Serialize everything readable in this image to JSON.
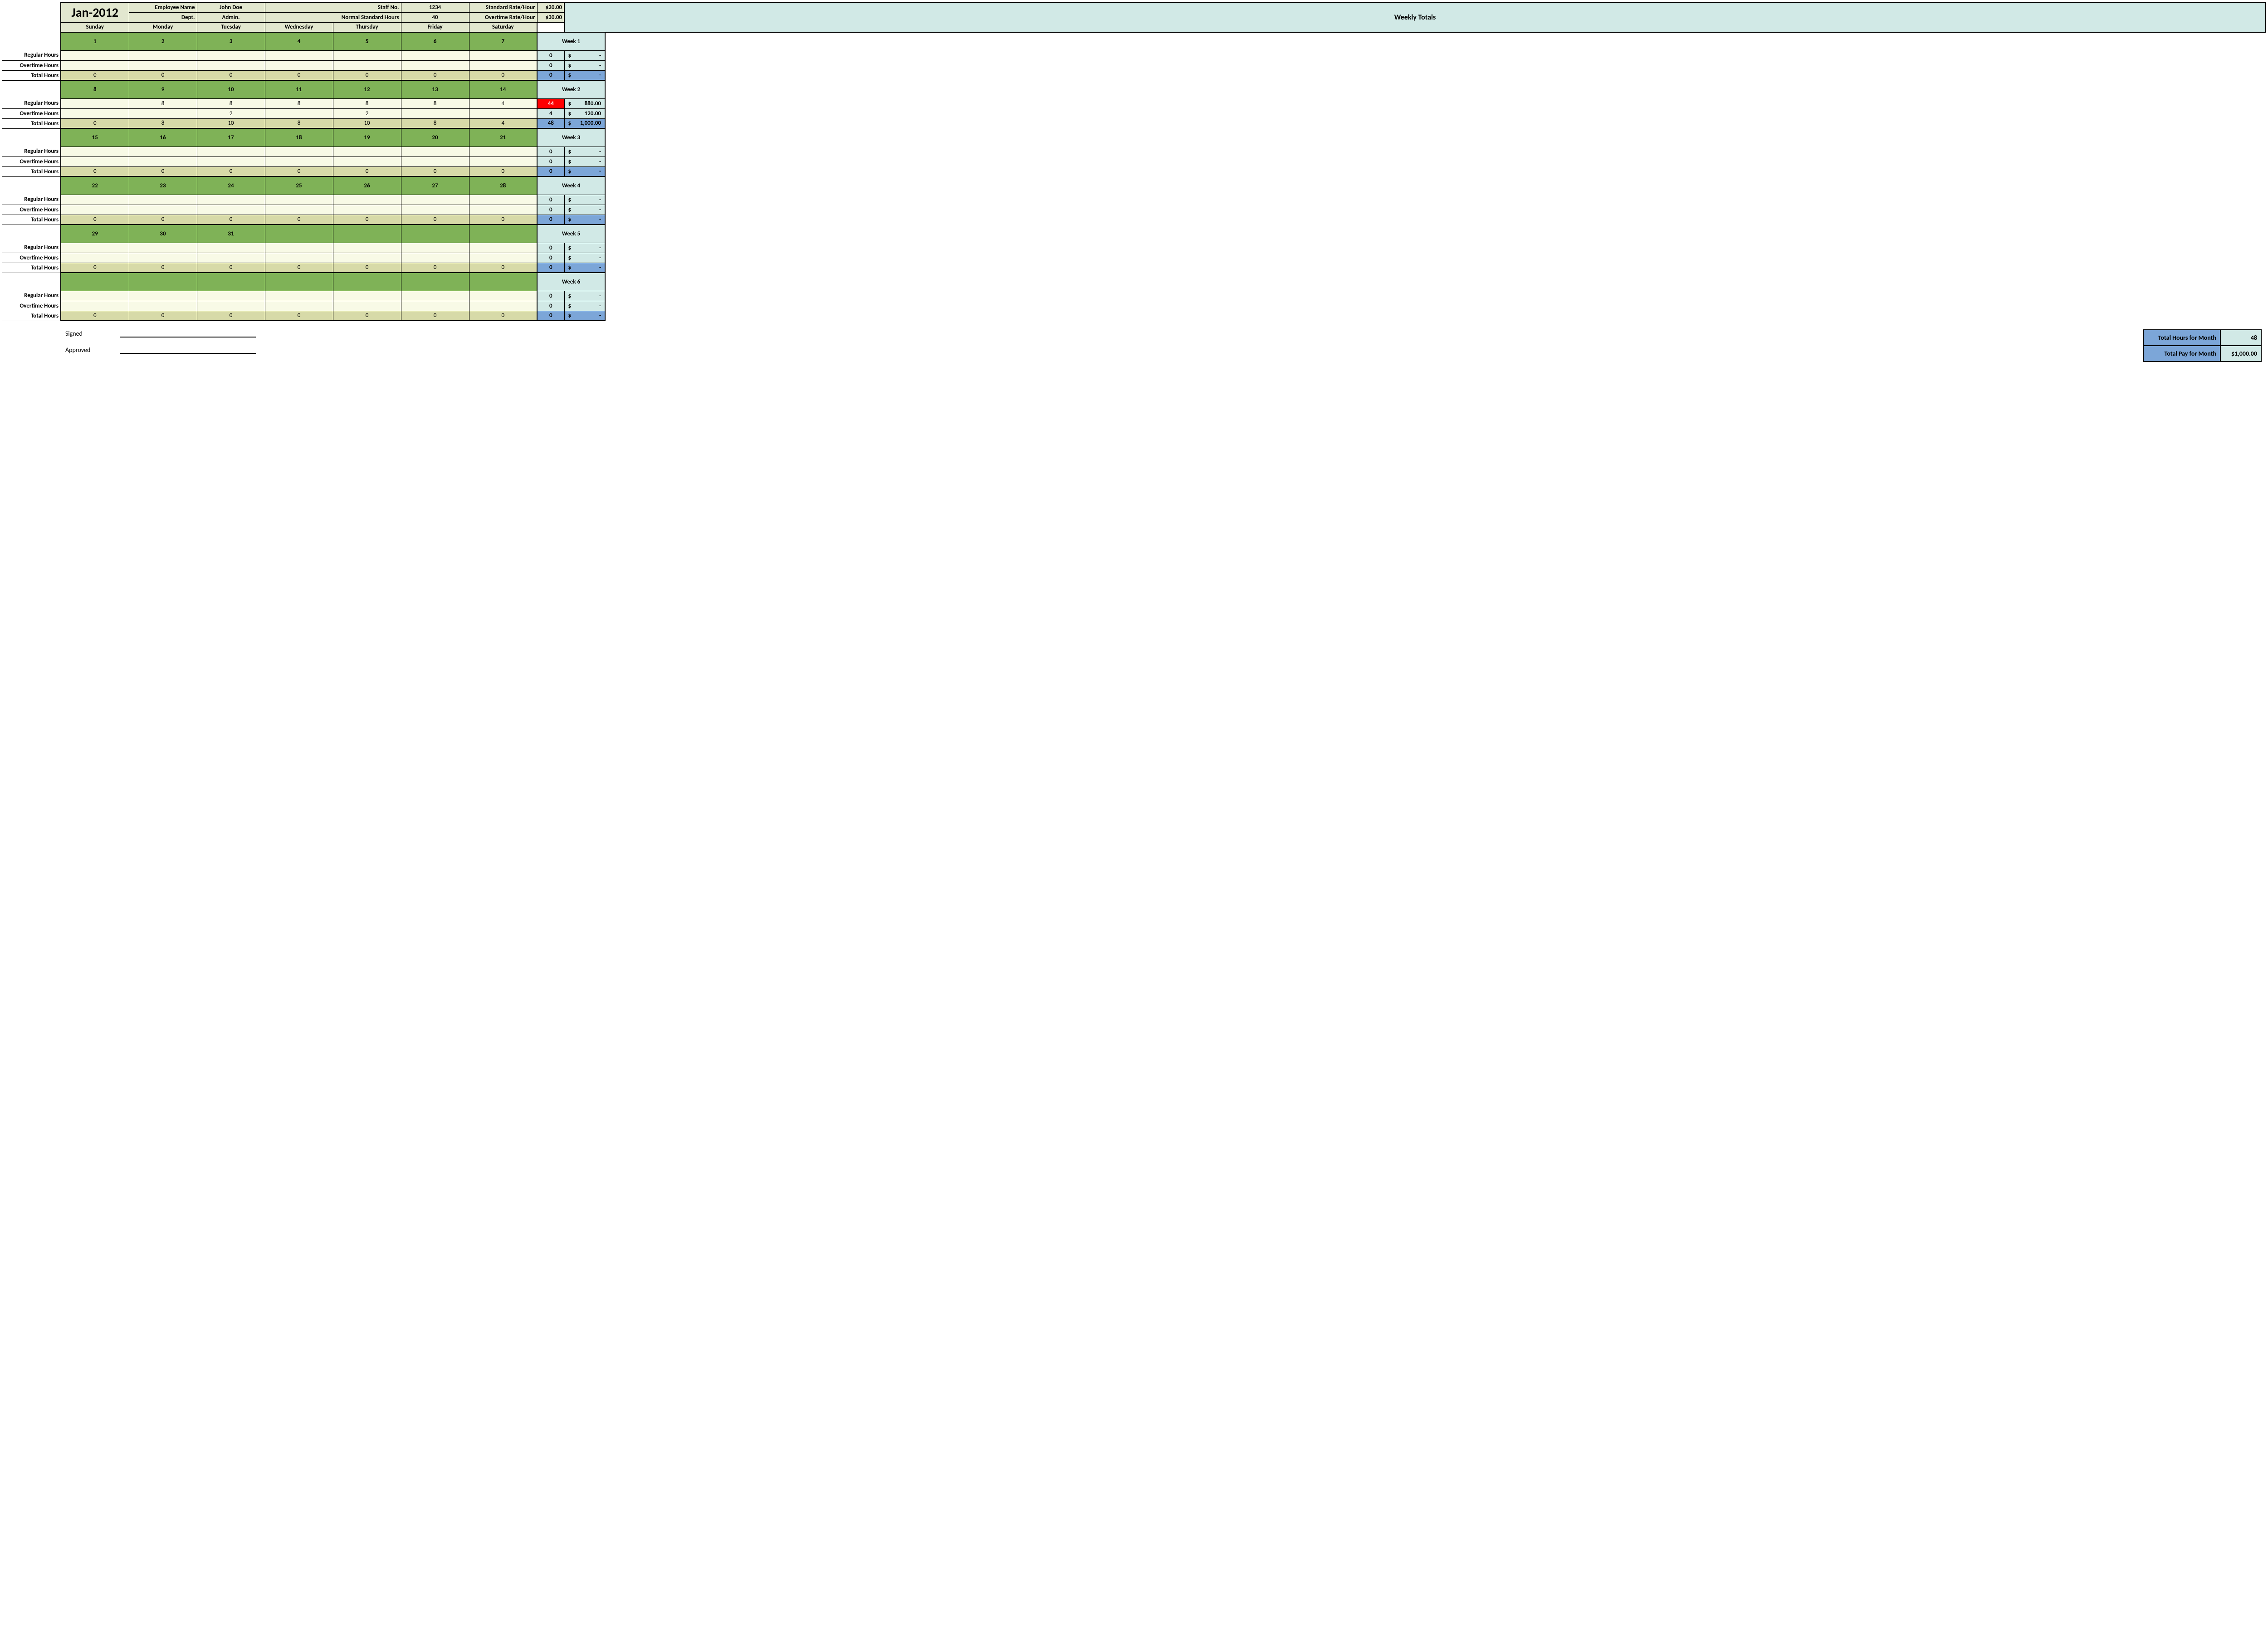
{
  "month": "Jan-2012",
  "header": {
    "emp_name_label": "Employee Name",
    "emp_name": "John Doe",
    "staff_no_label": "Staff No.",
    "staff_no": "1234",
    "std_rate_label": "Standard Rate/Hour",
    "std_rate": "$20.00",
    "dept_label": "Dept.",
    "dept": "Admin.",
    "norm_hours_label": "Normal Standard Hours",
    "norm_hours": "40",
    "ot_rate_label": "Overtime Rate/Hour",
    "ot_rate": "$30.00"
  },
  "days": [
    "Sunday",
    "Monday",
    "Tuesday",
    "Wednesday",
    "Thursday",
    "Friday",
    "Saturday"
  ],
  "weekly_totals_label": "Weekly Totals",
  "row_labels": {
    "reg": "Regular Hours",
    "ot": "Overtime Hours",
    "tot": "Total Hours"
  },
  "weeks": [
    {
      "label": "Week 1",
      "dates": [
        "1",
        "2",
        "3",
        "4",
        "5",
        "6",
        "7"
      ],
      "reg": [
        "",
        "",
        "",
        "",
        "",
        "",
        ""
      ],
      "ot": [
        "",
        "",
        "",
        "",
        "",
        "",
        ""
      ],
      "tot": [
        "0",
        "0",
        "0",
        "0",
        "0",
        "0",
        "0"
      ],
      "wt_reg_h": "0",
      "wt_reg_c": "-",
      "wt_ot_h": "0",
      "wt_ot_c": "-",
      "wt_tot_h": "0",
      "wt_tot_c": "-",
      "reg_red": false
    },
    {
      "label": "Week 2",
      "dates": [
        "8",
        "9",
        "10",
        "11",
        "12",
        "13",
        "14"
      ],
      "reg": [
        "",
        "8",
        "8",
        "8",
        "8",
        "8",
        "4"
      ],
      "ot": [
        "",
        "",
        "2",
        "",
        "2",
        "",
        ""
      ],
      "tot": [
        "0",
        "8",
        "10",
        "8",
        "10",
        "8",
        "4"
      ],
      "wt_reg_h": "44",
      "wt_reg_c": "880.00",
      "wt_ot_h": "4",
      "wt_ot_c": "120.00",
      "wt_tot_h": "48",
      "wt_tot_c": "1,000.00",
      "reg_red": true
    },
    {
      "label": "Week 3",
      "dates": [
        "15",
        "16",
        "17",
        "18",
        "19",
        "20",
        "21"
      ],
      "reg": [
        "",
        "",
        "",
        "",
        "",
        "",
        ""
      ],
      "ot": [
        "",
        "",
        "",
        "",
        "",
        "",
        ""
      ],
      "tot": [
        "0",
        "0",
        "0",
        "0",
        "0",
        "0",
        "0"
      ],
      "wt_reg_h": "0",
      "wt_reg_c": "-",
      "wt_ot_h": "0",
      "wt_ot_c": "-",
      "wt_tot_h": "0",
      "wt_tot_c": "-",
      "reg_red": false
    },
    {
      "label": "Week 4",
      "dates": [
        "22",
        "23",
        "24",
        "25",
        "26",
        "27",
        "28"
      ],
      "reg": [
        "",
        "",
        "",
        "",
        "",
        "",
        ""
      ],
      "ot": [
        "",
        "",
        "",
        "",
        "",
        "",
        ""
      ],
      "tot": [
        "0",
        "0",
        "0",
        "0",
        "0",
        "0",
        "0"
      ],
      "wt_reg_h": "0",
      "wt_reg_c": "-",
      "wt_ot_h": "0",
      "wt_ot_c": "-",
      "wt_tot_h": "0",
      "wt_tot_c": "-",
      "reg_red": false
    },
    {
      "label": "Week 5",
      "dates": [
        "29",
        "30",
        "31",
        "",
        "",
        "",
        ""
      ],
      "reg": [
        "",
        "",
        "",
        "",
        "",
        "",
        ""
      ],
      "ot": [
        "",
        "",
        "",
        "",
        "",
        "",
        ""
      ],
      "tot": [
        "0",
        "0",
        "0",
        "0",
        "0",
        "0",
        "0"
      ],
      "wt_reg_h": "0",
      "wt_reg_c": "-",
      "wt_ot_h": "0",
      "wt_ot_c": "-",
      "wt_tot_h": "0",
      "wt_tot_c": "-",
      "reg_red": false
    },
    {
      "label": "Week 6",
      "dates": [
        "",
        "",
        "",
        "",
        "",
        "",
        ""
      ],
      "reg": [
        "",
        "",
        "",
        "",
        "",
        "",
        ""
      ],
      "ot": [
        "",
        "",
        "",
        "",
        "",
        "",
        ""
      ],
      "tot": [
        "0",
        "0",
        "0",
        "0",
        "0",
        "0",
        "0"
      ],
      "wt_reg_h": "0",
      "wt_reg_c": "-",
      "wt_ot_h": "0",
      "wt_ot_c": "-",
      "wt_tot_h": "0",
      "wt_tot_c": "-",
      "reg_red": false
    }
  ],
  "footer": {
    "signed": "Signed",
    "approved": "Approved",
    "tot_hours_label": "Total Hours for Month",
    "tot_hours": "48",
    "tot_pay_label": "Total Pay for Month",
    "tot_pay": "$1,000.00"
  },
  "colors": {
    "header_bg": "#e2e7cf",
    "daynum_bg": "#7fb257",
    "input_bg": "#f8fae6",
    "totalrow_bg": "#d7daa8",
    "wt_bg": "#d1e9e6",
    "wt_blue": "#7ca6d8",
    "alert_red": "#ff0000"
  }
}
